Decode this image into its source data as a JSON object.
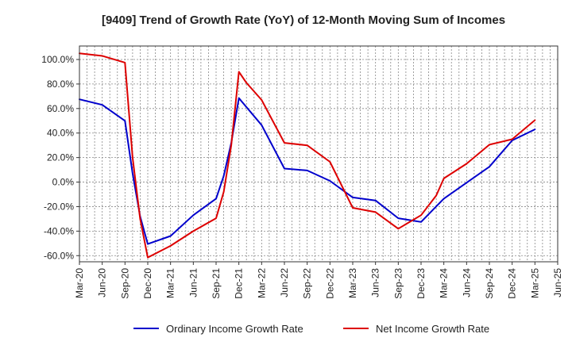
{
  "chart_data": {
    "type": "line",
    "title": "[9409]  Trend of Growth Rate (YoY) of 12-Month Moving Sum of Incomes",
    "xlabel": "",
    "ylabel": "",
    "x_ticks": [
      "Mar-20",
      "Jun-20",
      "Sep-20",
      "Dec-20",
      "Mar-21",
      "Jun-21",
      "Sep-21",
      "Dec-21",
      "Mar-22",
      "Jun-22",
      "Sep-22",
      "Dec-22",
      "Mar-23",
      "Jun-23",
      "Sep-23",
      "Dec-23",
      "Mar-24",
      "Jun-24",
      "Sep-24",
      "Dec-24",
      "Mar-25",
      "Jun-25"
    ],
    "y_ticks": [
      -60,
      -40,
      -20,
      0,
      20,
      40,
      60,
      80,
      100
    ],
    "y_tick_labels": [
      "-60.0%",
      "-40.0%",
      "-20.0%",
      "0.0%",
      "20.0%",
      "40.0%",
      "60.0%",
      "80.0%",
      "100.0%"
    ],
    "ylim": [
      -65,
      111
    ],
    "grid": true,
    "legend_position": "bottom",
    "series": [
      {
        "name": "Ordinary Income Growth Rate",
        "color": "#0000cc",
        "points": [
          [
            "Mar-20",
            67.5
          ],
          [
            "Jun-20",
            63
          ],
          [
            "Sep-20",
            50
          ],
          [
            "Oct-20",
            7
          ],
          [
            "Nov-20",
            -28
          ],
          [
            "Dec-20",
            -50.5
          ],
          [
            "Mar-21",
            -44
          ],
          [
            "Jun-21",
            -27
          ],
          [
            "Sep-21",
            -13.5
          ],
          [
            "Oct-21",
            5
          ],
          [
            "Nov-21",
            32
          ],
          [
            "Dec-21",
            68.5
          ],
          [
            "Mar-22",
            46.5
          ],
          [
            "Jun-22",
            11
          ],
          [
            "Sep-22",
            9.5
          ],
          [
            "Dec-22",
            1
          ],
          [
            "Mar-23",
            -12.5
          ],
          [
            "Jun-23",
            -15
          ],
          [
            "Sep-23",
            -29.5
          ],
          [
            "Dec-23",
            -32.5
          ],
          [
            "Mar-24",
            -13.5
          ],
          [
            "Jun-24",
            -0.5
          ],
          [
            "Sep-24",
            12.5
          ],
          [
            "Dec-24",
            34
          ],
          [
            "Mar-25",
            43
          ]
        ]
      },
      {
        "name": "Net Income Growth Rate",
        "color": "#dd0000",
        "points": [
          [
            "Mar-20",
            105
          ],
          [
            "Jun-20",
            103
          ],
          [
            "Sep-20",
            97.5
          ],
          [
            "Oct-20",
            20
          ],
          [
            "Nov-20",
            -30
          ],
          [
            "Dec-20",
            -61.5
          ],
          [
            "Mar-21",
            -52
          ],
          [
            "Jun-21",
            -40
          ],
          [
            "Sep-21",
            -29.5
          ],
          [
            "Oct-21",
            -8
          ],
          [
            "Nov-21",
            30
          ],
          [
            "Dec-21",
            90
          ],
          [
            "Jan-22",
            81
          ],
          [
            "Mar-22",
            67
          ],
          [
            "Jun-22",
            32
          ],
          [
            "Sep-22",
            30
          ],
          [
            "Dec-22",
            16.5
          ],
          [
            "Mar-23",
            -21
          ],
          [
            "Jun-23",
            -24.5
          ],
          [
            "Sep-23",
            -38
          ],
          [
            "Dec-23",
            -27
          ],
          [
            "Feb-24",
            -11
          ],
          [
            "Mar-24",
            3
          ],
          [
            "Jun-24",
            15
          ],
          [
            "Sep-24",
            30.5
          ],
          [
            "Dec-24",
            35
          ],
          [
            "Mar-25",
            50.5
          ]
        ]
      }
    ]
  }
}
